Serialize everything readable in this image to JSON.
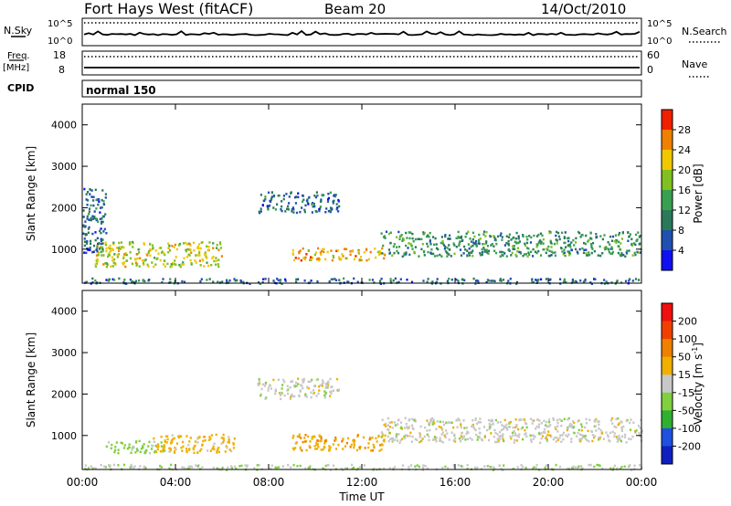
{
  "header": {
    "station": "Fort Hays West (fitACF)",
    "beam": "Beam 20",
    "date": "14/Oct/2010"
  },
  "strip": {
    "nsky_label": "N.Sky",
    "nsky_ticks": [
      "10^5",
      "10^0"
    ],
    "nsearch_label": "N.Search",
    "nsearch_ticks": [
      "10^5",
      "10^0"
    ],
    "freq_label": "Freq.",
    "freq_unit": "[MHz]",
    "freq_ticks": [
      "18",
      "8"
    ],
    "nave_label": "Nave",
    "nave_ticks": [
      "60",
      "0"
    ],
    "cpid_label": "CPID",
    "cpid_value": "normal 150"
  },
  "axes": {
    "ylabel": "Slant Range [km]",
    "xlabel": "Time UT",
    "y_ticks": [
      "1000",
      "2000",
      "3000",
      "4000"
    ],
    "x_ticks": [
      "00:00",
      "04:00",
      "08:00",
      "12:00",
      "16:00",
      "20:00",
      "00:00"
    ]
  },
  "colorbars": {
    "power": {
      "label": "Power [dB]",
      "ticks": [
        "4",
        "8",
        "12",
        "16",
        "20",
        "24",
        "28"
      ],
      "colors": [
        "#1010f0",
        "#2050b0",
        "#2a7a5a",
        "#3aa050",
        "#80c020",
        "#f0c800",
        "#f08000",
        "#f02000"
      ]
    },
    "velocity": {
      "label": "Velocity [m s",
      "label_sup": "-1",
      "label_end": "]",
      "ticks": [
        "200",
        "100",
        "50",
        "15",
        "-15",
        "-50",
        "-100",
        "-200"
      ],
      "colors": [
        "#1020c0",
        "#2050e0",
        "#30b030",
        "#80d040",
        "#c8c8c8",
        "#f0b000",
        "#f08000",
        "#f04000",
        "#f01010"
      ]
    }
  },
  "chart_data": [
    {
      "type": "heatmap",
      "panel": "power",
      "title": "",
      "xlabel": "Time UT",
      "ylabel": "Slant Range [km]",
      "xlim_hours": [
        0,
        24
      ],
      "ylim_km": [
        180,
        4500
      ],
      "colorbar": "Power [dB]",
      "bands": [
        {
          "t0": 0.5,
          "t1": 6.0,
          "r0": 600,
          "r1": 1200,
          "level": 20
        },
        {
          "t0": 9.0,
          "t1": 13.0,
          "r0": 750,
          "r1": 1050,
          "level": 24
        },
        {
          "t0": 12.8,
          "t1": 24.0,
          "r0": 850,
          "r1": 1450,
          "level": 12
        },
        {
          "t0": 0.0,
          "t1": 1.0,
          "r0": 900,
          "r1": 2500,
          "level": 8
        },
        {
          "t0": 7.5,
          "t1": 11.0,
          "r0": 1900,
          "r1": 2400,
          "level": 8
        },
        {
          "t0": 0.0,
          "t1": 24.0,
          "r0": 190,
          "r1": 320,
          "level": 8
        }
      ]
    },
    {
      "type": "heatmap",
      "panel": "velocity",
      "title": "",
      "xlabel": "Time UT",
      "ylabel": "Slant Range [km]",
      "xlim_hours": [
        0,
        24
      ],
      "ylim_km": [
        180,
        4500
      ],
      "colorbar": "Velocity [m s-1]",
      "bands": [
        {
          "t0": 1.0,
          "t1": 3.5,
          "r0": 600,
          "r1": 900,
          "value": 30
        },
        {
          "t0": 3.0,
          "t1": 6.5,
          "r0": 600,
          "r1": 1050,
          "value": -30
        },
        {
          "t0": 9.0,
          "t1": 13.0,
          "r0": 650,
          "r1": 1050,
          "value": -40
        },
        {
          "t0": 12.8,
          "t1": 24.0,
          "r0": 850,
          "r1": 1450,
          "value": 0
        },
        {
          "t0": 7.5,
          "t1": 11.0,
          "r0": 1900,
          "r1": 2400,
          "value": 0
        },
        {
          "t0": 0.0,
          "t1": 24.0,
          "r0": 190,
          "r1": 320,
          "value": 10
        }
      ]
    }
  ]
}
